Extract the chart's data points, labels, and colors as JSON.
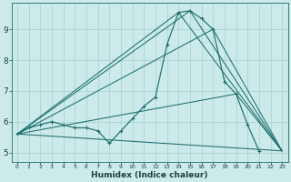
{
  "xlabel": "Humidex (Indice chaleur)",
  "bg_color": "#cceaea",
  "grid_color": "#aad4d4",
  "line_color": "#1e6e6e",
  "xlim": [
    -0.5,
    23.5
  ],
  "ylim": [
    4.7,
    9.85
  ],
  "xticks": [
    0,
    1,
    2,
    3,
    4,
    5,
    6,
    7,
    8,
    9,
    10,
    11,
    12,
    13,
    14,
    15,
    16,
    17,
    18,
    19,
    20,
    21,
    22,
    23
  ],
  "yticks": [
    5,
    6,
    7,
    8,
    9
  ],
  "main_series": {
    "x": [
      0,
      1,
      2,
      3,
      4,
      5,
      6,
      7,
      8,
      9,
      10,
      11,
      12,
      13,
      14,
      15,
      16,
      17,
      18,
      19,
      20,
      21
    ],
    "y": [
      5.6,
      5.8,
      5.9,
      6.0,
      5.9,
      5.8,
      5.8,
      5.7,
      5.3,
      5.7,
      6.1,
      6.5,
      6.8,
      8.5,
      9.55,
      9.6,
      9.35,
      9.0,
      7.3,
      6.9,
      5.9,
      5.05
    ]
  },
  "straight_lines": [
    {
      "x": [
        0,
        14,
        23
      ],
      "y": [
        5.6,
        9.55,
        5.05
      ]
    },
    {
      "x": [
        0,
        15,
        23
      ],
      "y": [
        5.6,
        9.6,
        5.05
      ]
    },
    {
      "x": [
        0,
        17,
        23
      ],
      "y": [
        5.6,
        9.0,
        5.05
      ]
    },
    {
      "x": [
        0,
        19,
        23
      ],
      "y": [
        5.6,
        6.9,
        5.05
      ]
    },
    {
      "x": [
        0,
        23
      ],
      "y": [
        5.6,
        5.05
      ]
    }
  ]
}
